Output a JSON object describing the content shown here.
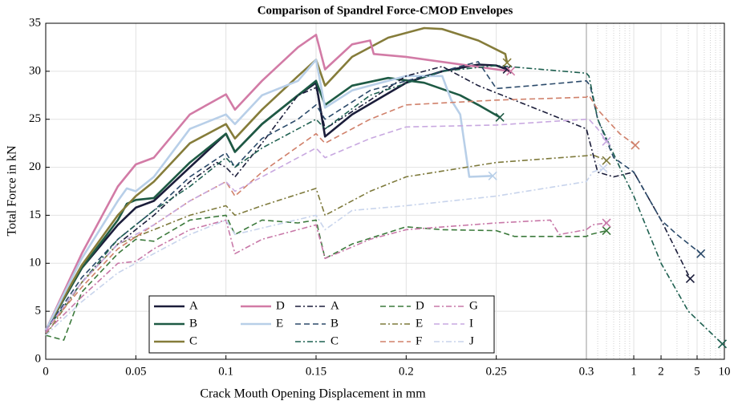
{
  "chart_data": {
    "type": "line",
    "title": "Comparison of Spandrel Force-CMOD Envelopes",
    "xlabel": "Crack Mouth Opening Displacement in mm",
    "ylabel": "Total Force in kN",
    "xscale": "linear-log",
    "xbreak": 0.3,
    "xlim": [
      0,
      10
    ],
    "ylim": [
      0,
      35
    ],
    "xticks": [
      0,
      0.05,
      0.1,
      0.15,
      0.2,
      0.25,
      0.3,
      1,
      2,
      5,
      10
    ],
    "xminorticks": [
      0.4,
      0.5,
      0.6,
      0.7,
      0.8,
      0.9,
      3,
      4,
      6,
      7,
      8,
      9
    ],
    "yticks": [
      0,
      5,
      10,
      15,
      20,
      25,
      30,
      35
    ],
    "grid": true,
    "legend": "lower center",
    "end_marker": "x",
    "series": [
      {
        "name": "A",
        "color": "#1b1d3a",
        "style": "solid",
        "x": [
          0,
          0.02,
          0.04,
          0.05,
          0.06,
          0.08,
          0.1,
          0.105,
          0.12,
          0.14,
          0.15,
          0.155,
          0.17,
          0.2,
          0.22,
          0.24,
          0.25,
          0.256
        ],
        "values": [
          3,
          9.5,
          14,
          15.8,
          16.5,
          20,
          23.5,
          21.6,
          24.5,
          27.5,
          28.8,
          23.2,
          25.5,
          28.8,
          30,
          30.7,
          30.6,
          30.2
        ]
      },
      {
        "name": "B",
        "color": "#1e5a44",
        "style": "solid",
        "x": [
          0,
          0.02,
          0.04,
          0.045,
          0.05,
          0.06,
          0.08,
          0.1,
          0.105,
          0.12,
          0.14,
          0.15,
          0.155,
          0.17,
          0.19,
          0.21,
          0.23,
          0.24,
          0.252
        ],
        "values": [
          3,
          9.5,
          14.5,
          16.2,
          16.6,
          16.8,
          20.5,
          23.5,
          21.6,
          24.5,
          27.5,
          29,
          26.5,
          28.5,
          29.3,
          28.8,
          27.5,
          26.5,
          25.2
        ]
      },
      {
        "name": "C",
        "color": "#857c3a",
        "style": "solid",
        "x": [
          0,
          0.02,
          0.04,
          0.05,
          0.06,
          0.08,
          0.1,
          0.105,
          0.12,
          0.14,
          0.15,
          0.155,
          0.17,
          0.19,
          0.21,
          0.22,
          0.24,
          0.255,
          0.256
        ],
        "values": [
          3,
          9.8,
          15,
          17,
          18.5,
          22.5,
          24.5,
          23,
          26,
          29.5,
          31.2,
          28.5,
          31.5,
          33.5,
          34.5,
          34.4,
          33.2,
          31.8,
          30.9
        ]
      },
      {
        "name": "D",
        "color": "#d27ba6",
        "style": "solid",
        "x": [
          0,
          0.02,
          0.04,
          0.05,
          0.06,
          0.08,
          0.1,
          0.105,
          0.12,
          0.14,
          0.15,
          0.155,
          0.17,
          0.18,
          0.182,
          0.2,
          0.25,
          0.258
        ],
        "values": [
          3,
          11,
          18,
          20.3,
          21,
          25.5,
          27.6,
          26,
          29,
          32.5,
          33.8,
          30.2,
          32.8,
          33.2,
          31.8,
          31.5,
          30.2,
          30
        ]
      },
      {
        "name": "E",
        "color": "#b8cfe8",
        "style": "solid",
        "x": [
          0,
          0.02,
          0.04,
          0.045,
          0.05,
          0.06,
          0.08,
          0.1,
          0.105,
          0.12,
          0.14,
          0.15,
          0.155,
          0.17,
          0.2,
          0.22,
          0.225,
          0.23,
          0.235,
          0.248
        ],
        "values": [
          3,
          10.5,
          16.5,
          17.8,
          17.5,
          19,
          24,
          25.5,
          24.5,
          27.5,
          29,
          31.2,
          26.2,
          28,
          29.5,
          29.5,
          27,
          25.5,
          19,
          19.1
        ]
      },
      {
        "name": "A",
        "color": "#1b1d3a",
        "style": "dashdot",
        "x": [
          0,
          0.02,
          0.04,
          0.06,
          0.08,
          0.095,
          0.1,
          0.105,
          0.12,
          0.14,
          0.15,
          0.155,
          0.18,
          0.2,
          0.22,
          0.24,
          0.26,
          0.28,
          0.3,
          0.4,
          0.6,
          1,
          2,
          4.2
        ],
        "values": [
          3,
          8,
          12,
          15,
          18.5,
          20.5,
          20,
          19,
          22.5,
          27.5,
          28.3,
          24,
          27,
          29.5,
          30.5,
          28.5,
          27,
          25.5,
          24,
          19.5,
          19,
          19.5,
          14.5,
          8.4
        ]
      },
      {
        "name": "B",
        "color": "#2b4a6a",
        "style": "dashed",
        "x": [
          0,
          0.02,
          0.04,
          0.06,
          0.08,
          0.1,
          0.105,
          0.12,
          0.14,
          0.15,
          0.155,
          0.18,
          0.22,
          0.24,
          0.25,
          0.27,
          0.3,
          0.33,
          0.4,
          0.6,
          1,
          2,
          3,
          5.5
        ],
        "values": [
          3,
          8.5,
          12.5,
          15.5,
          19,
          21.5,
          20,
          23,
          25,
          26.5,
          25,
          28,
          30,
          31,
          28.2,
          28.5,
          29,
          28.5,
          25,
          21,
          19.5,
          14.5,
          13,
          11
        ]
      },
      {
        "name": "C",
        "color": "#1e6050",
        "style": "dashdot",
        "x": [
          0,
          0.02,
          0.04,
          0.06,
          0.08,
          0.1,
          0.105,
          0.12,
          0.15,
          0.155,
          0.18,
          0.22,
          0.25,
          0.3,
          0.32,
          0.4,
          0.7,
          1,
          2,
          4,
          9.5
        ],
        "values": [
          3,
          8,
          12.5,
          15.5,
          18,
          21,
          20,
          22,
          25,
          24,
          27.5,
          30,
          30.6,
          29.8,
          29.5,
          25,
          20,
          17,
          10,
          5,
          1.6
        ]
      },
      {
        "name": "D",
        "color": "#3c7a3c",
        "style": "dashed",
        "x": [
          0,
          0.01,
          0.02,
          0.04,
          0.05,
          0.06,
          0.08,
          0.1,
          0.105,
          0.12,
          0.14,
          0.15,
          0.155,
          0.17,
          0.2,
          0.22,
          0.25,
          0.26,
          0.3,
          0.33,
          0.5
        ],
        "values": [
          2.5,
          2,
          7,
          11,
          12.5,
          12.3,
          14.5,
          15,
          13,
          14.5,
          14.2,
          14.5,
          10.5,
          12,
          13.8,
          13.5,
          13.4,
          12.8,
          12.8,
          13,
          13.4
        ]
      },
      {
        "name": "E",
        "color": "#7e7a3c",
        "style": "dashdot",
        "x": [
          0,
          0.02,
          0.04,
          0.06,
          0.08,
          0.1,
          0.105,
          0.12,
          0.15,
          0.155,
          0.18,
          0.2,
          0.25,
          0.3,
          0.35,
          0.5
        ],
        "values": [
          2.5,
          8,
          12,
          13.5,
          15,
          16,
          15,
          16,
          17.8,
          15,
          17.5,
          19,
          20.5,
          21.2,
          21.3,
          20.7
        ]
      },
      {
        "name": "F",
        "color": "#d0806a",
        "style": "dashed",
        "x": [
          0,
          0.02,
          0.04,
          0.06,
          0.08,
          0.1,
          0.105,
          0.12,
          0.15,
          0.155,
          0.18,
          0.2,
          0.25,
          0.3,
          0.32,
          0.4,
          0.7,
          1.04
        ],
        "values": [
          3,
          7.5,
          11.5,
          14,
          16.5,
          18.5,
          17,
          19.5,
          23.5,
          22.5,
          25,
          26.5,
          27,
          27.3,
          27.5,
          26,
          23.5,
          22.3
        ]
      },
      {
        "name": "G",
        "color": "#c878a8",
        "style": "dashdot",
        "x": [
          0,
          0.02,
          0.04,
          0.05,
          0.06,
          0.08,
          0.1,
          0.105,
          0.12,
          0.15,
          0.155,
          0.18,
          0.2,
          0.25,
          0.28,
          0.285,
          0.3,
          0.35,
          0.5
        ],
        "values": [
          2.8,
          6.5,
          10,
          10.2,
          11.5,
          13.5,
          14.5,
          11,
          12.5,
          14,
          10.5,
          12.5,
          13.5,
          14.2,
          14.5,
          13,
          13.5,
          14,
          14.2
        ]
      },
      {
        "name": "I",
        "color": "#c8a8e0",
        "style": "dashed",
        "x": [
          0,
          0.02,
          0.04,
          0.06,
          0.08,
          0.1,
          0.105,
          0.12,
          0.15,
          0.155,
          0.18,
          0.2,
          0.25,
          0.3,
          0.32,
          0.4,
          0.5
        ],
        "values": [
          3,
          8,
          12,
          14,
          16.5,
          18.5,
          17.5,
          19,
          22,
          21,
          23,
          24.2,
          24.4,
          25,
          25,
          24,
          22.7
        ]
      },
      {
        "name": "J",
        "color": "#c8d4ec",
        "style": "dashdot",
        "x": [
          0,
          0.02,
          0.04,
          0.05,
          0.06,
          0.08,
          0.1,
          0.105,
          0.15,
          0.155,
          0.17,
          0.2,
          0.25,
          0.3,
          0.35,
          0.46
        ],
        "values": [
          2.5,
          6,
          9,
          10,
          11,
          13,
          14.5,
          13,
          15,
          13.5,
          15.5,
          16,
          17,
          18.5,
          19.5,
          19.9
        ]
      }
    ]
  }
}
